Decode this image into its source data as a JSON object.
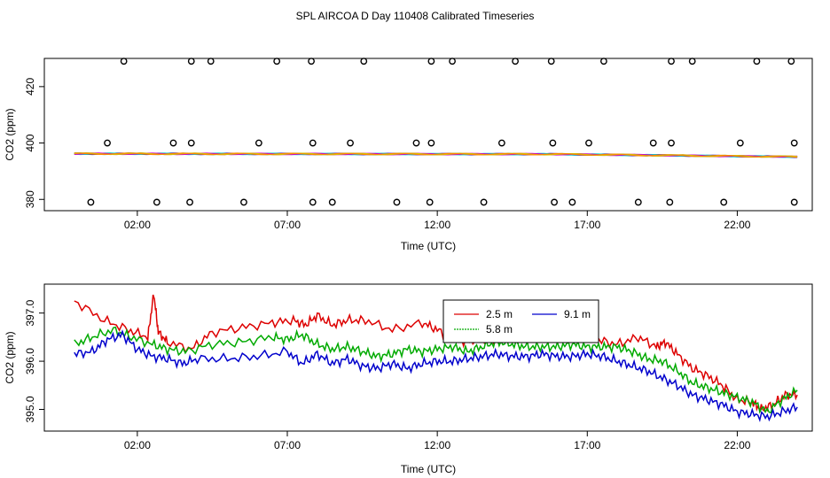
{
  "title": "SPL AIRCOA D  Day 110408  Calibrated Timeseries",
  "chart_data": [
    {
      "type": "scatter",
      "xlabel": "Time (UTC)",
      "ylabel": "CO2 (ppm)",
      "xlim": [
        -1.1,
        24.5
      ],
      "ylim": [
        376,
        430
      ],
      "x_ticks": [
        2,
        7,
        12,
        17,
        22
      ],
      "x_tick_labels": [
        "02:00",
        "07:00",
        "12:00",
        "17:00",
        "22:00"
      ],
      "y_ticks": [
        380,
        400,
        420
      ],
      "y_tick_labels": [
        "380",
        "400",
        "420"
      ],
      "flag_points": [
        {
          "x": 1.55,
          "y": 429
        },
        {
          "x": 3.8,
          "y": 429
        },
        {
          "x": 4.45,
          "y": 429
        },
        {
          "x": 6.65,
          "y": 429
        },
        {
          "x": 7.8,
          "y": 429
        },
        {
          "x": 9.55,
          "y": 429
        },
        {
          "x": 11.8,
          "y": 429
        },
        {
          "x": 12.5,
          "y": 429
        },
        {
          "x": 14.6,
          "y": 429
        },
        {
          "x": 15.8,
          "y": 429
        },
        {
          "x": 17.55,
          "y": 429
        },
        {
          "x": 19.8,
          "y": 429
        },
        {
          "x": 20.5,
          "y": 429
        },
        {
          "x": 22.65,
          "y": 429
        },
        {
          "x": 23.8,
          "y": 429
        },
        {
          "x": 1.0,
          "y": 400
        },
        {
          "x": 3.2,
          "y": 400
        },
        {
          "x": 3.8,
          "y": 400
        },
        {
          "x": 6.05,
          "y": 400
        },
        {
          "x": 7.85,
          "y": 400
        },
        {
          "x": 9.1,
          "y": 400
        },
        {
          "x": 11.3,
          "y": 400
        },
        {
          "x": 11.8,
          "y": 400
        },
        {
          "x": 14.15,
          "y": 400
        },
        {
          "x": 15.85,
          "y": 400
        },
        {
          "x": 17.05,
          "y": 400
        },
        {
          "x": 19.2,
          "y": 400
        },
        {
          "x": 19.8,
          "y": 400
        },
        {
          "x": 22.1,
          "y": 400
        },
        {
          "x": 23.9,
          "y": 400
        },
        {
          "x": 0.45,
          "y": 379
        },
        {
          "x": 2.65,
          "y": 379
        },
        {
          "x": 3.75,
          "y": 379
        },
        {
          "x": 5.55,
          "y": 379
        },
        {
          "x": 7.85,
          "y": 379
        },
        {
          "x": 8.5,
          "y": 379
        },
        {
          "x": 10.65,
          "y": 379
        },
        {
          "x": 11.75,
          "y": 379
        },
        {
          "x": 13.55,
          "y": 379
        },
        {
          "x": 15.9,
          "y": 379
        },
        {
          "x": 16.5,
          "y": 379
        },
        {
          "x": 18.7,
          "y": 379
        },
        {
          "x": 19.75,
          "y": 379
        },
        {
          "x": 21.55,
          "y": 379
        },
        {
          "x": 23.9,
          "y": 379
        }
      ],
      "series_start": 396.2,
      "series_end": 395.1,
      "series_colors": [
        "#dd0000",
        "#00cc00",
        "#0000cc",
        "#00cccc",
        "#cc00cc",
        "#cccc00",
        "#ff8800"
      ]
    },
    {
      "type": "line",
      "xlabel": "Time (UTC)",
      "ylabel": "CO2 (ppm)",
      "xlim": [
        -1.1,
        24.5
      ],
      "ylim": [
        394.55,
        397.6
      ],
      "x_ticks": [
        2,
        7,
        12,
        17,
        22
      ],
      "x_tick_labels": [
        "02:00",
        "07:00",
        "12:00",
        "17:00",
        "22:00"
      ],
      "y_ticks": [
        395.0,
        396.0,
        397.0
      ],
      "y_tick_labels": [
        "395.0",
        "396.0",
        "397.0"
      ],
      "legend": {
        "placement": "top-center"
      },
      "series": [
        {
          "name": "2.5 m",
          "color": "#dd0000",
          "x": [
            -0.1,
            0.9,
            1.7,
            2.35,
            2.55,
            2.7,
            3.0,
            3.8,
            4.5,
            5.5,
            6.5,
            7.2,
            7.6,
            8.0,
            8.5,
            9.0,
            9.6,
            10.5,
            11.5,
            12.0,
            12.5,
            13.0,
            13.5,
            14.0,
            14.5,
            15.0,
            15.7,
            16.5,
            17.3,
            18.0,
            18.7,
            19.3,
            19.6,
            20.0,
            20.5,
            21.0,
            21.5,
            22.0,
            22.5,
            22.8,
            23.2,
            23.6,
            24.0
          ],
          "y": [
            397.25,
            396.85,
            396.65,
            396.5,
            397.4,
            396.6,
            396.4,
            396.25,
            396.6,
            396.7,
            396.8,
            396.85,
            396.75,
            396.95,
            396.75,
            396.85,
            396.85,
            396.65,
            396.8,
            396.65,
            396.5,
            396.4,
            396.5,
            396.45,
            396.9,
            396.55,
            396.5,
            396.5,
            396.45,
            396.35,
            396.5,
            396.3,
            396.4,
            396.15,
            395.85,
            395.7,
            395.5,
            395.2,
            395.15,
            395.0,
            395.1,
            395.3,
            395.3
          ]
        },
        {
          "name": "5.8 m",
          "color": "#00aa00",
          "x": [
            -0.1,
            0.5,
            1.2,
            1.8,
            2.5,
            3.0,
            3.6,
            4.5,
            5.5,
            6.5,
            7.0,
            7.5,
            8.0,
            8.5,
            9.0,
            9.5,
            10.0,
            10.5,
            11.0,
            11.5,
            12.0,
            12.5,
            13.0,
            13.5,
            14.0,
            14.5,
            15.0,
            15.5,
            16.0,
            16.5,
            17.0,
            17.5,
            18.0,
            18.5,
            19.0,
            19.5,
            20.0,
            20.5,
            21.0,
            21.5,
            22.0,
            22.5,
            23.0,
            23.5,
            24.0
          ],
          "y": [
            396.35,
            396.5,
            396.65,
            396.5,
            396.35,
            396.25,
            396.2,
            396.35,
            396.4,
            396.5,
            396.45,
            396.55,
            396.35,
            396.25,
            396.3,
            396.2,
            396.1,
            396.15,
            396.25,
            396.2,
            396.25,
            396.3,
            396.2,
            396.3,
            396.4,
            396.35,
            396.3,
            396.3,
            396.3,
            396.35,
            396.3,
            396.3,
            396.3,
            396.2,
            396.05,
            396.0,
            395.8,
            395.55,
            395.45,
            395.35,
            395.25,
            395.15,
            394.95,
            395.2,
            395.4
          ]
        },
        {
          "name": "9.1 m",
          "color": "#0000cc",
          "x": [
            -0.1,
            0.5,
            1.0,
            1.5,
            2.0,
            2.5,
            3.0,
            3.5,
            4.0,
            5.0,
            6.0,
            7.0,
            7.5,
            8.0,
            8.5,
            9.0,
            9.5,
            10.0,
            10.5,
            11.0,
            11.5,
            12.0,
            12.5,
            13.0,
            13.5,
            14.0,
            14.5,
            15.0,
            15.5,
            16.0,
            16.5,
            17.0,
            17.5,
            18.0,
            18.5,
            19.0,
            19.5,
            20.0,
            20.5,
            21.0,
            21.5,
            22.0,
            22.5,
            23.0,
            23.5,
            24.0
          ],
          "y": [
            396.15,
            396.2,
            396.45,
            396.55,
            396.25,
            396.1,
            396.05,
            395.95,
            396.05,
            396.05,
            396.1,
            396.2,
            395.95,
            396.15,
            395.95,
            396.05,
            395.9,
            395.85,
            395.95,
            395.85,
            395.95,
            396.0,
            396.0,
            396.05,
            396.1,
            396.15,
            396.1,
            396.1,
            396.15,
            396.1,
            396.1,
            396.15,
            396.1,
            396.0,
            395.9,
            395.8,
            395.65,
            395.5,
            395.3,
            395.2,
            395.1,
            394.95,
            394.9,
            394.85,
            394.95,
            395.05
          ]
        }
      ]
    }
  ]
}
